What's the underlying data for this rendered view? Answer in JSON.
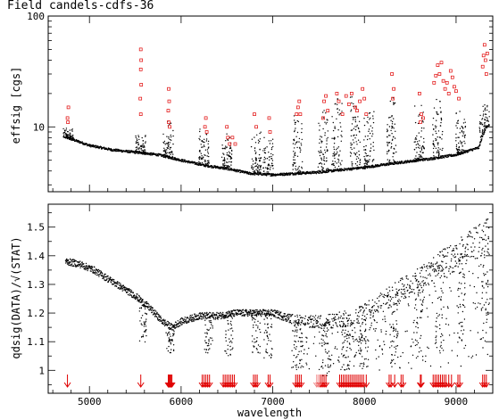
{
  "chart_data": [
    {
      "type": "scatter",
      "title": "Field candels-cdfs-36",
      "ylabel": "effsig [cgs]",
      "yscale": "log",
      "xlim": [
        4550,
        9400
      ],
      "ylim": [
        2.6,
        100
      ],
      "ytick_labels": [
        "10",
        "100"
      ],
      "yticks": [
        10,
        100
      ],
      "series": [
        {
          "style": "black dots",
          "baseline": [
            [
              4750,
              8.0
            ],
            [
              5000,
              6.8
            ],
            [
              5250,
              6.2
            ],
            [
              5500,
              5.9
            ],
            [
              5750,
              5.6
            ],
            [
              6000,
              5.0
            ],
            [
              6250,
              4.5
            ],
            [
              6500,
              4.2
            ],
            [
              6750,
              3.8
            ],
            [
              7000,
              3.7
            ],
            [
              7250,
              3.8
            ],
            [
              7500,
              3.9
            ],
            [
              7750,
              4.1
            ],
            [
              8000,
              4.3
            ],
            [
              8250,
              4.6
            ],
            [
              8500,
              4.9
            ],
            [
              8750,
              5.2
            ],
            [
              9000,
              5.6
            ],
            [
              9250,
              6.5
            ],
            [
              9330,
              10.0
            ]
          ],
          "spike_regions": [
            [
              4770,
              10
            ],
            [
              5560,
              9
            ],
            [
              5860,
              12
            ],
            [
              6250,
              10
            ],
            [
              6500,
              9
            ],
            [
              6820,
              10
            ],
            [
              6950,
              9
            ],
            [
              7270,
              14
            ],
            [
              7550,
              16
            ],
            [
              7700,
              19
            ],
            [
              7900,
              20
            ],
            [
              8050,
              17
            ],
            [
              8300,
              20
            ],
            [
              8600,
              17
            ],
            [
              8800,
              19
            ],
            [
              9050,
              15
            ],
            [
              9310,
              17
            ]
          ]
        },
        {
          "style": "red open squares",
          "points": [
            [
              4760,
              12
            ],
            [
              4770,
              15
            ],
            [
              4765,
              11
            ],
            [
              5560,
              50
            ],
            [
              5565,
              40
            ],
            [
              5560,
              33
            ],
            [
              5565,
              24
            ],
            [
              5555,
              18
            ],
            [
              5560,
              13
            ],
            [
              5865,
              22
            ],
            [
              5870,
              17
            ],
            [
              5860,
              14
            ],
            [
              5865,
              11
            ],
            [
              5875,
              10
            ],
            [
              6260,
              10
            ],
            [
              6270,
              12
            ],
            [
              6280,
              9
            ],
            [
              6500,
              10
            ],
            [
              6510,
              8
            ],
            [
              6530,
              7
            ],
            [
              6560,
              8
            ],
            [
              6590,
              7
            ],
            [
              6800,
              13
            ],
            [
              6820,
              10
            ],
            [
              6960,
              12
            ],
            [
              6970,
              9
            ],
            [
              7260,
              13
            ],
            [
              7275,
              15
            ],
            [
              7290,
              17
            ],
            [
              7300,
              13
            ],
            [
              7560,
              17
            ],
            [
              7580,
              19
            ],
            [
              7600,
              14
            ],
            [
              7550,
              12
            ],
            [
              7700,
              20
            ],
            [
              7720,
              17
            ],
            [
              7760,
              13
            ],
            [
              7800,
              19
            ],
            [
              7830,
              16
            ],
            [
              7860,
              20
            ],
            [
              7900,
              15
            ],
            [
              7920,
              14
            ],
            [
              7950,
              17
            ],
            [
              7980,
              22
            ],
            [
              8000,
              18
            ],
            [
              8020,
              13
            ],
            [
              8300,
              30
            ],
            [
              8320,
              22
            ],
            [
              8310,
              18
            ],
            [
              8600,
              20
            ],
            [
              8620,
              13
            ],
            [
              8640,
              12
            ],
            [
              8610,
              11
            ],
            [
              8760,
              25
            ],
            [
              8780,
              29
            ],
            [
              8800,
              36
            ],
            [
              8820,
              30
            ],
            [
              8840,
              38
            ],
            [
              8860,
              26
            ],
            [
              8880,
              22
            ],
            [
              8900,
              25
            ],
            [
              8920,
              20
            ],
            [
              8940,
              32
            ],
            [
              8960,
              28
            ],
            [
              8980,
              23
            ],
            [
              9000,
              21
            ],
            [
              9030,
              18
            ],
            [
              9290,
              35
            ],
            [
              9300,
              44
            ],
            [
              9310,
              55
            ],
            [
              9320,
              40
            ],
            [
              9330,
              30
            ],
            [
              9340,
              46
            ]
          ]
        }
      ]
    },
    {
      "type": "scatter",
      "xlabel": "wavelength",
      "ylabel": "qdsig(DATA)/√(STAT)",
      "xlim": [
        4550,
        9400
      ],
      "ylim": [
        0.92,
        1.58
      ],
      "xticks": [
        5000,
        6000,
        7000,
        8000,
        9000
      ],
      "xtick_labels": [
        "5000",
        "6000",
        "7000",
        "8000",
        "9000"
      ],
      "yticks": [
        1.0,
        1.1,
        1.2,
        1.3,
        1.4,
        1.5
      ],
      "ytick_labels": [
        "1",
        "1.1",
        "1.2",
        "1.3",
        "1.4",
        "1.5"
      ],
      "series": [
        {
          "style": "black dots",
          "trend": [
            [
              4750,
              1.38
            ],
            [
              4900,
              1.37
            ],
            [
              5050,
              1.35
            ],
            [
              5200,
              1.32
            ],
            [
              5350,
              1.29
            ],
            [
              5500,
              1.26
            ],
            [
              5650,
              1.22
            ],
            [
              5800,
              1.17
            ],
            [
              5900,
              1.15
            ],
            [
              6000,
              1.17
            ],
            [
              6200,
              1.19
            ],
            [
              6400,
              1.19
            ],
            [
              6600,
              1.2
            ],
            [
              6800,
              1.2
            ],
            [
              7000,
              1.2
            ],
            [
              7200,
              1.18
            ],
            [
              7400,
              1.17
            ],
            [
              7600,
              1.17
            ],
            [
              7800,
              1.18
            ],
            [
              8000,
              1.2
            ],
            [
              8200,
              1.24
            ],
            [
              8400,
              1.28
            ],
            [
              8600,
              1.32
            ],
            [
              8800,
              1.36
            ],
            [
              9000,
              1.4
            ],
            [
              9200,
              1.44
            ],
            [
              9350,
              1.47
            ]
          ],
          "scatter_regions": [
            [
              5580,
              1.08
            ],
            [
              5880,
              1.06
            ],
            [
              6300,
              1.06
            ],
            [
              6520,
              1.05
            ],
            [
              6820,
              1.06
            ],
            [
              6950,
              1.04
            ],
            [
              7280,
              1.0
            ],
            [
              7580,
              0.98
            ],
            [
              7800,
              1.0
            ],
            [
              7980,
              1.0
            ],
            [
              8320,
              1.02
            ],
            [
              8600,
              1.04
            ],
            [
              8820,
              1.06
            ],
            [
              9060,
              1.1
            ],
            [
              9320,
              1.12
            ]
          ]
        },
        {
          "style": "red down arrows",
          "arrows_x": [
            4760,
            5560,
            5860,
            5870,
            5880,
            5890,
            5900,
            6230,
            6250,
            6270,
            6290,
            6310,
            6460,
            6480,
            6500,
            6520,
            6540,
            6560,
            6580,
            6790,
            6810,
            6830,
            6950,
            6970,
            7250,
            7270,
            7290,
            7310,
            7520,
            7540,
            7560,
            7580,
            7730,
            7750,
            7770,
            7790,
            7810,
            7830,
            7850,
            7870,
            7890,
            7910,
            7930,
            7950,
            7970,
            7990,
            8020,
            8270,
            8290,
            8330,
            8400,
            8420,
            8610,
            8620,
            8750,
            8770,
            8790,
            8810,
            8830,
            8850,
            8870,
            8890,
            8920,
            8950,
            9020,
            9040,
            9290,
            9310,
            9330
          ],
          "faint_arrows_x": [
            7480,
            7500
          ]
        }
      ]
    }
  ]
}
